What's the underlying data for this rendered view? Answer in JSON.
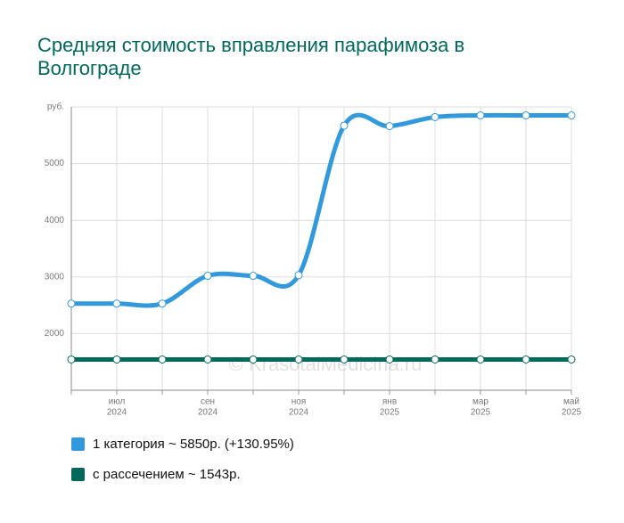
{
  "chart_data": {
    "type": "line",
    "title": "Средняя стоимость вправления парафимоза в Волгограде",
    "watermark": "© KrasotaiMedicina.ru",
    "categories": [
      null,
      [
        "июл",
        "2024"
      ],
      null,
      [
        "сен",
        "2024"
      ],
      null,
      [
        "ноя",
        "2024"
      ],
      null,
      [
        "янв",
        "2025"
      ],
      null,
      [
        "мар",
        "2025"
      ],
      null,
      [
        "май",
        "2025"
      ]
    ],
    "series": [
      {
        "name": "1 категория ~ 5850р. (+130.95%)",
        "color": "#3399dd",
        "values": [
          2530,
          2530,
          2530,
          3020,
          3020,
          3030,
          5670,
          5660,
          5820,
          5850,
          5850,
          5850
        ]
      },
      {
        "name": "с рассечением ~ 1543р.",
        "color": "#00695c",
        "values": [
          1543,
          1543,
          1543,
          1543,
          1543,
          1543,
          1543,
          1543,
          1543,
          1543,
          1543,
          1543
        ]
      }
    ],
    "ylim": [
      1000,
      6000
    ],
    "yticks": [
      2000,
      3000,
      4000,
      5000,
      {
        "value": 6000,
        "label": "руб."
      }
    ],
    "grid": true
  }
}
